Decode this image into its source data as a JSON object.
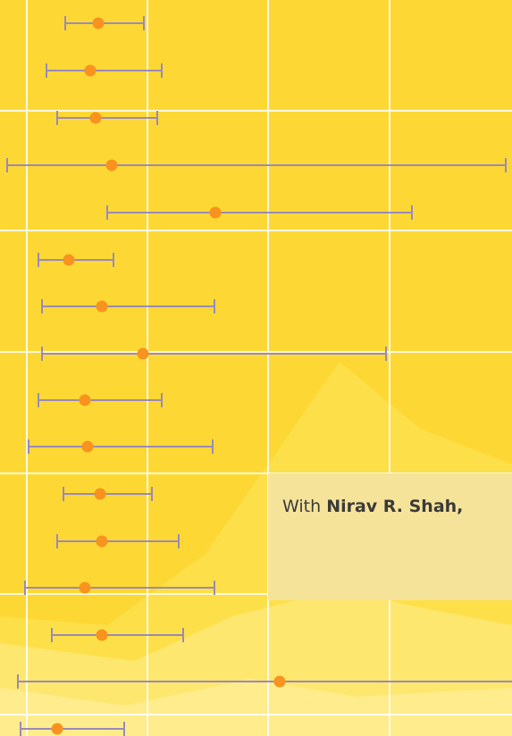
{
  "caption": {
    "lead": "With",
    "name": "Nirav R. Shah,"
  }
}
